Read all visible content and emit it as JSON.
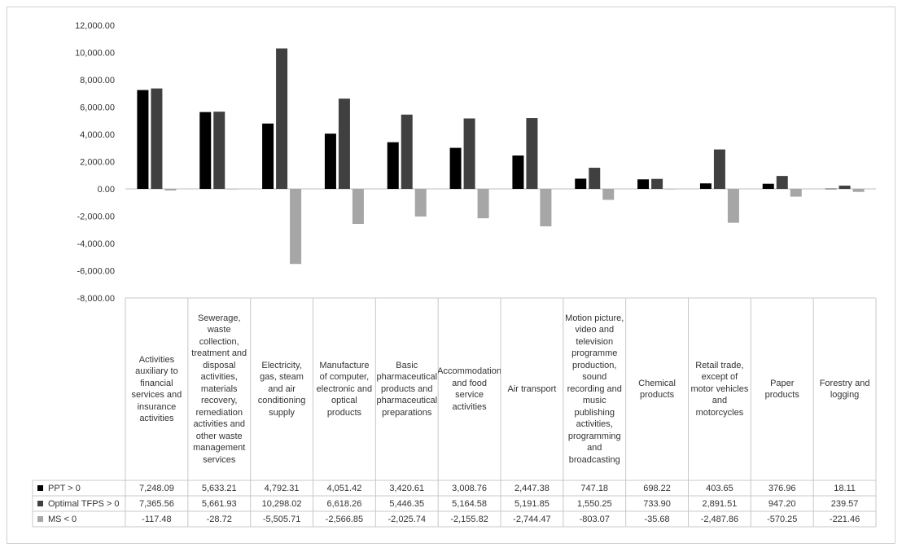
{
  "chart_data": {
    "type": "bar",
    "ylim": [
      -8000,
      12000
    ],
    "y_ticks": [
      "12,000.00",
      "10,000.00",
      "8,000.00",
      "6,000.00",
      "4,000.00",
      "2,000.00",
      "0.00",
      "-2,000.00",
      "-4,000.00",
      "-6,000.00",
      "-8,000.00"
    ],
    "y_tick_values": [
      12000,
      10000,
      8000,
      6000,
      4000,
      2000,
      0,
      -2000,
      -4000,
      -6000,
      -8000
    ],
    "grid": false,
    "legend": "data-table-below",
    "categories": [
      "Activities auxiliary to financial services and insurance activities",
      "Sewerage, waste collection, treatment and disposal activities, materials recovery, remediation activities and other waste management services",
      "Electricity, gas, steam and air conditioning supply",
      "Manufacture of computer, electronic and optical products",
      "Basic pharmaceutical products and pharmaceutical preparations",
      "Accommodation and food service activities",
      "Air transport",
      "Motion picture, video and television programme production, sound recording and music publishing activities, programming and broadcasting",
      "Chemical products",
      "Retail trade, except of motor vehicles and motorcycles",
      "Paper products",
      "Forestry and logging"
    ],
    "series": [
      {
        "name": "PPT > 0",
        "color": "#000000",
        "values": [
          7248.09,
          5633.21,
          4792.31,
          4051.42,
          3420.61,
          3008.76,
          2447.38,
          747.18,
          698.22,
          403.65,
          376.96,
          18.11
        ],
        "labels": [
          "7,248.09",
          "5,633.21",
          "4,792.31",
          "4,051.42",
          "3,420.61",
          "3,008.76",
          "2,447.38",
          "747.18",
          "698.22",
          "403.65",
          "376.96",
          "18.11"
        ]
      },
      {
        "name": "Optimal TFPS > 0",
        "color": "#404040",
        "values": [
          7365.56,
          5661.93,
          10298.02,
          6618.26,
          5446.35,
          5164.58,
          5191.85,
          1550.25,
          733.9,
          2891.51,
          947.2,
          239.57
        ],
        "labels": [
          "7,365.56",
          "5,661.93",
          "10,298.02",
          "6,618.26",
          "5,446.35",
          "5,164.58",
          "5,191.85",
          "1,550.25",
          "733.90",
          "2,891.51",
          "947.20",
          "239.57"
        ]
      },
      {
        "name": "MS < 0",
        "color": "#a6a6a6",
        "values": [
          -117.48,
          -28.72,
          -5505.71,
          -2566.85,
          -2025.74,
          -2155.82,
          -2744.47,
          -803.07,
          -35.68,
          -2487.86,
          -570.25,
          -221.46
        ],
        "labels": [
          "-117.48",
          "-28.72",
          "-5,505.71",
          "-2,566.85",
          "-2,025.74",
          "-2,155.82",
          "-2,744.47",
          "-803.07",
          "-35.68",
          "-2,487.86",
          "-570.25",
          "-221.46"
        ]
      }
    ]
  }
}
